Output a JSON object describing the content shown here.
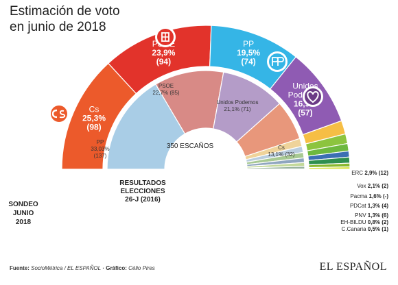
{
  "header": {
    "title_line1": "Estimación de voto",
    "title_line2": "en junio de 2018"
  },
  "chart_data": {
    "type": "pie",
    "title": "Estimación de voto en junio de 2018",
    "center_label": "350 ESCAÑOS",
    "outer_ring": {
      "label": "SONDEO JUNIO 2018",
      "label_lines": [
        "SONDEO",
        "JUNIO",
        "2018"
      ],
      "parties": [
        {
          "name": "Cs",
          "vote": "25,3%",
          "seats": "(98)",
          "pct": 25.3,
          "color": "#ec5a2b",
          "logo": "cs-logo-icon"
        },
        {
          "name": "PSOE",
          "vote": "23,9%",
          "seats": "(94)",
          "pct": 23.9,
          "color": "#e2332b",
          "logo": "psoe-rose-logo-icon"
        },
        {
          "name": "PP",
          "vote": "19,5%",
          "seats": "(74)",
          "pct": 19.5,
          "color": "#35b5e6",
          "logo": "pp-logo-icon"
        },
        {
          "name": "Unidos Podemos",
          "vote": "16,9%",
          "seats": "(57)",
          "pct": 16.9,
          "color": "#8f5bb3",
          "logo": "podemos-heart-logo-icon"
        },
        {
          "name": "ERC",
          "label": "ERC 2,9% (12)",
          "pct": 2.9,
          "color": "#f6be45"
        },
        {
          "name": "Vox",
          "label": "Vox 2,1% (2)",
          "pct": 2.1,
          "color": "#8cc43f"
        },
        {
          "name": "Pacma",
          "label": "Pacma 1,6% (-)",
          "pct": 1.6,
          "color": "#6db83f"
        },
        {
          "name": "PDCat",
          "label": "PDCat 1,3% (4)",
          "pct": 1.3,
          "color": "#3b6fb3"
        },
        {
          "name": "PNV",
          "label": "PNV 1,3% (6)",
          "pct": 1.3,
          "color": "#2f8f4e"
        },
        {
          "name": "EH-BILDU",
          "label": "EH-BILDU 0,8% (2)",
          "pct": 0.8,
          "color": "#8ab82e"
        },
        {
          "name": "C.Canaria",
          "label": "C.Canaria 0,5% (1)",
          "pct": 0.5,
          "color": "#d7e23c"
        }
      ]
    },
    "inner_ring": {
      "label_lines": [
        "RESULTADOS",
        "ELECCIONES",
        "26-J (2016)"
      ],
      "parties": [
        {
          "name": "PP",
          "vote": "33,03%",
          "seats": "(137)",
          "pct": 33.03,
          "color": "#a9cde6"
        },
        {
          "name": "PSOE",
          "vote": "22,7% (85)",
          "pct": 22.7,
          "color": "#d88a86"
        },
        {
          "name": "Unidos Podemos",
          "vote": "21,1% (71)",
          "pct": 21.1,
          "color": "#b49cc8"
        },
        {
          "name": "Cs",
          "vote": "13,1% (32)",
          "pct": 13.1,
          "color": "#e8977b"
        },
        {
          "name": "other-1",
          "pct": 2.6,
          "color": "#efd39a"
        },
        {
          "name": "other-2",
          "pct": 2.0,
          "color": "#b9cdde"
        },
        {
          "name": "other-3",
          "pct": 1.8,
          "color": "#a7c993"
        },
        {
          "name": "other-4",
          "pct": 1.5,
          "color": "#8fa6bf"
        },
        {
          "name": "other-5",
          "pct": 1.2,
          "color": "#c3d99a"
        },
        {
          "name": "other-6",
          "pct": 0.9,
          "color": "#98b39e"
        },
        {
          "name": "other-7",
          "pct": 0.07,
          "color": "#cfcfcf"
        }
      ]
    }
  },
  "footer": {
    "source_label": "Fuente:",
    "source_text": "SocioMétrica / EL ESPAÑOL",
    "credit_label": "· Gráfico:",
    "credit_text": "Célio Pires",
    "brand": "EL ESPAÑOL"
  }
}
